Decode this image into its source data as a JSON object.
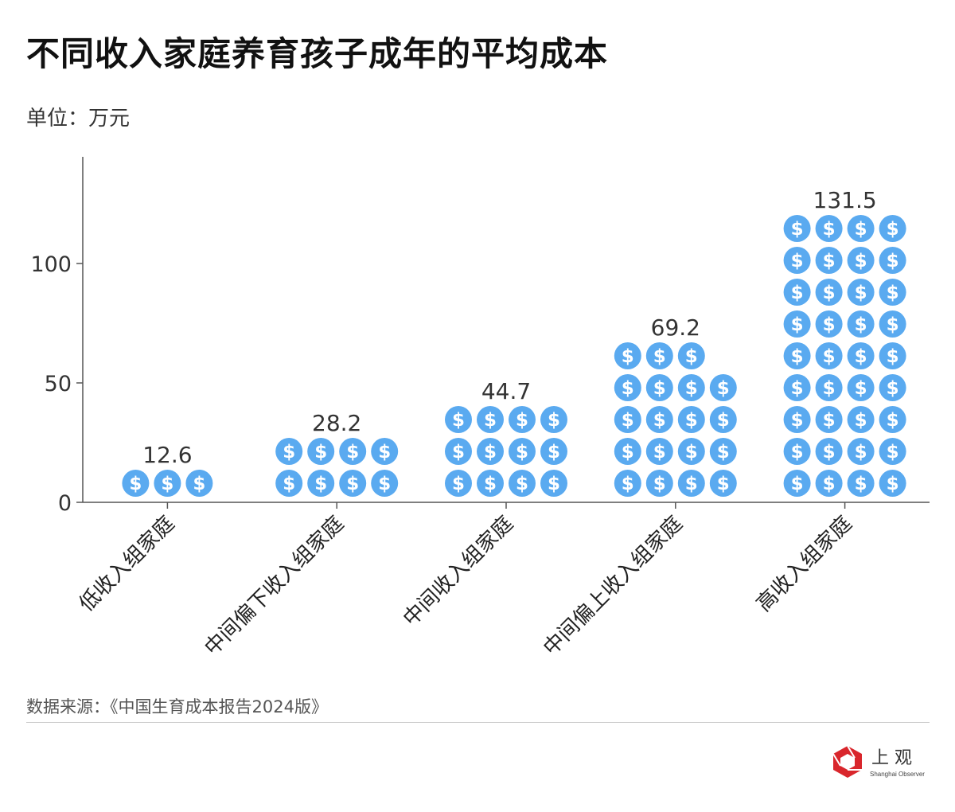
{
  "title": "不同收入家庭养育孩子成年的平均成本",
  "unit": "单位：万元",
  "source": "数据来源：《中国生育成本报告2024版》",
  "logo": {
    "name": "上观",
    "subtitle": "Shanghai Observer",
    "color": "#d9262c"
  },
  "chart_data": {
    "type": "bar",
    "style": "pictogram",
    "icon": "dollar-coin-icon",
    "icon_color": "#5aaaf0",
    "title": "不同收入家庭养育孩子成年的平均成本",
    "ylabel": "单位：万元",
    "categories": [
      "低收入组家庭",
      "中间偏下收入组家庭",
      "中间收入组家庭",
      "中间偏上收入组家庭",
      "高收入组家庭"
    ],
    "values": [
      12.6,
      28.2,
      44.7,
      69.2,
      131.5
    ],
    "value_labels": [
      "12.6",
      "28.2",
      "44.7",
      "69.2",
      "131.5"
    ],
    "yticks": [
      0,
      50,
      100
    ],
    "ytick_labels": [
      "0",
      "50",
      "100"
    ],
    "ylim": [
      0,
      145
    ],
    "grid": false,
    "legend": "none"
  }
}
